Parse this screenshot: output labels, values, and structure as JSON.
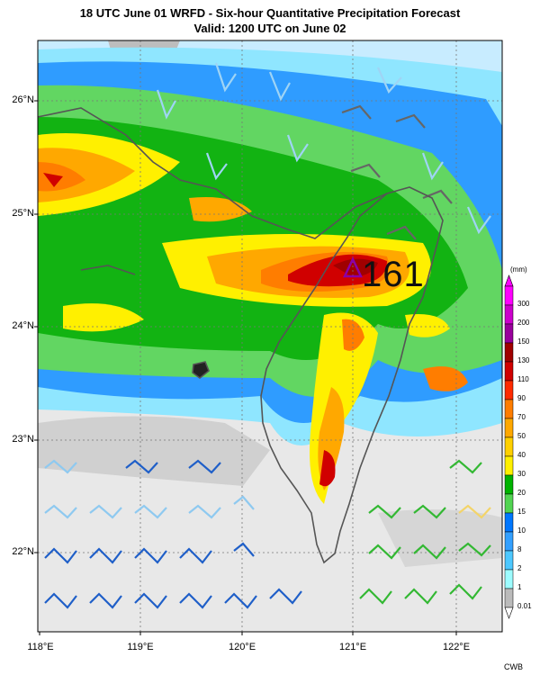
{
  "title": {
    "line1": "18 UTC June 01 WRFD - Six-hour Quantitative Precipitation Forecast",
    "line2": "Valid: 1200 UTC on June 02"
  },
  "map": {
    "lat_labels": [
      "26°N",
      "25°N",
      "24°N",
      "23°N",
      "22°N"
    ],
    "lon_labels": [
      "118°E",
      "119°E",
      "120°E",
      "121°E",
      "122°E"
    ],
    "max_marker": {
      "value": "161",
      "symbol": "triangle",
      "color": "#8a00a8"
    }
  },
  "legend": {
    "unit": "(mm)",
    "levels": [
      "300",
      "200",
      "150",
      "130",
      "110",
      "90",
      "70",
      "50",
      "40",
      "30",
      "20",
      "15",
      "10",
      "8",
      "2",
      "1",
      "0.01"
    ],
    "colors": [
      "#ff00ff",
      "#cc00cc",
      "#99009c",
      "#a00000",
      "#d00000",
      "#ff2a00",
      "#ff7d00",
      "#ffa800",
      "#ffd000",
      "#fff000",
      "#00b300",
      "#52d452",
      "#0077ff",
      "#33a0ff",
      "#4dc8ff",
      "#9dfcff",
      "#bbbbbb"
    ]
  },
  "credit": "CWB"
}
